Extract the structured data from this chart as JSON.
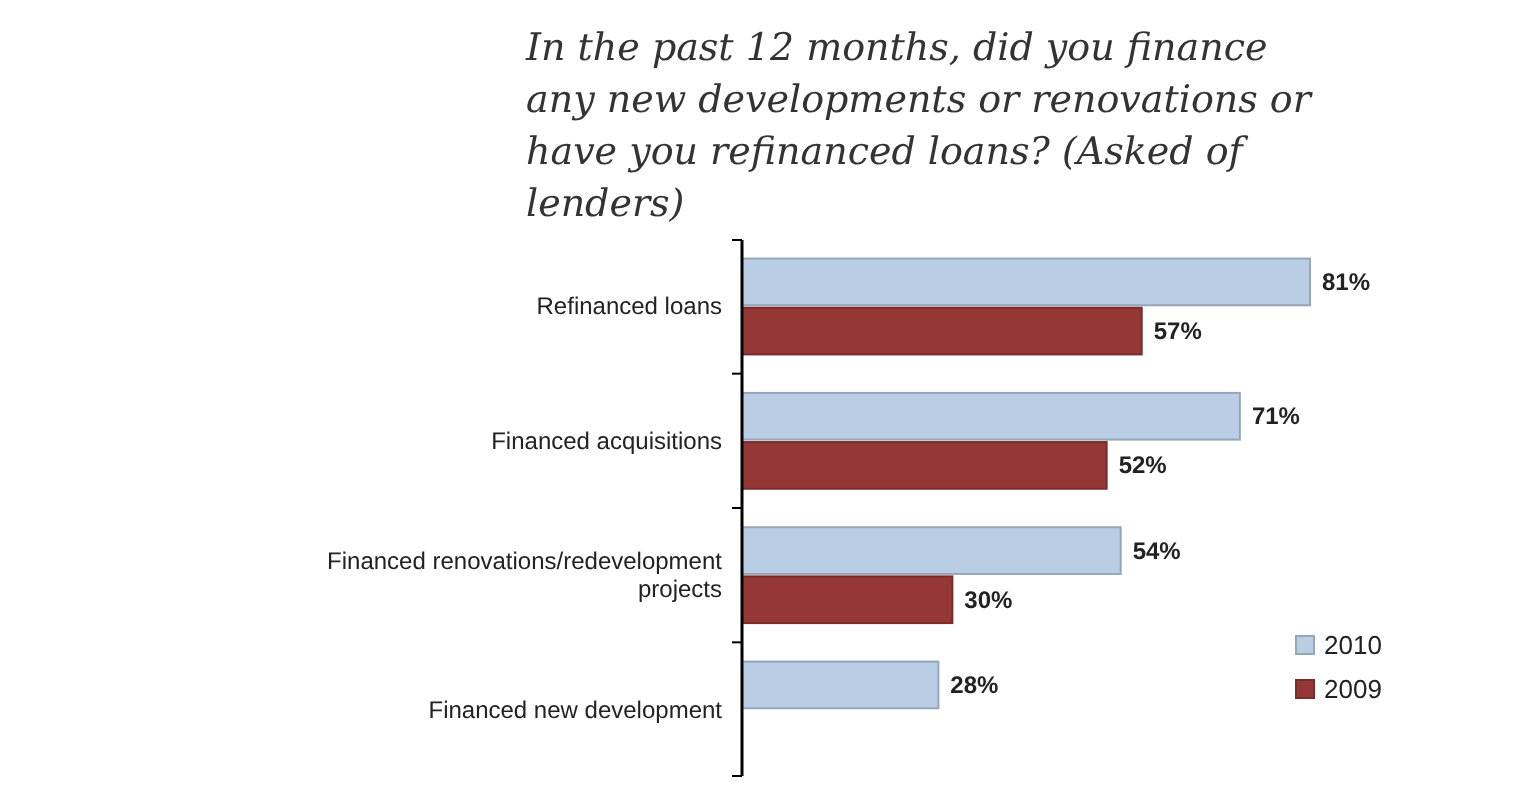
{
  "chart_data": {
    "type": "bar",
    "orientation": "horizontal",
    "title": "In the past 12 months, did you finance any new developments or renovations or have you refinanced loans? (Asked of lenders)",
    "categories": [
      "Refinanced loans",
      "Financed acquisitions",
      "Financed renovations/redevelopment projects",
      "Financed new development"
    ],
    "series": [
      {
        "name": "2010",
        "color": "#b9cde5",
        "values": [
          81,
          71,
          54,
          28
        ],
        "value_labels": [
          "81%",
          "71%",
          "54%",
          "28%"
        ]
      },
      {
        "name": "2009",
        "color": "#953735",
        "values": [
          57,
          52,
          30,
          null
        ],
        "value_labels": [
          "57%",
          "52%",
          "30%",
          null
        ]
      }
    ],
    "legend": "right"
  }
}
